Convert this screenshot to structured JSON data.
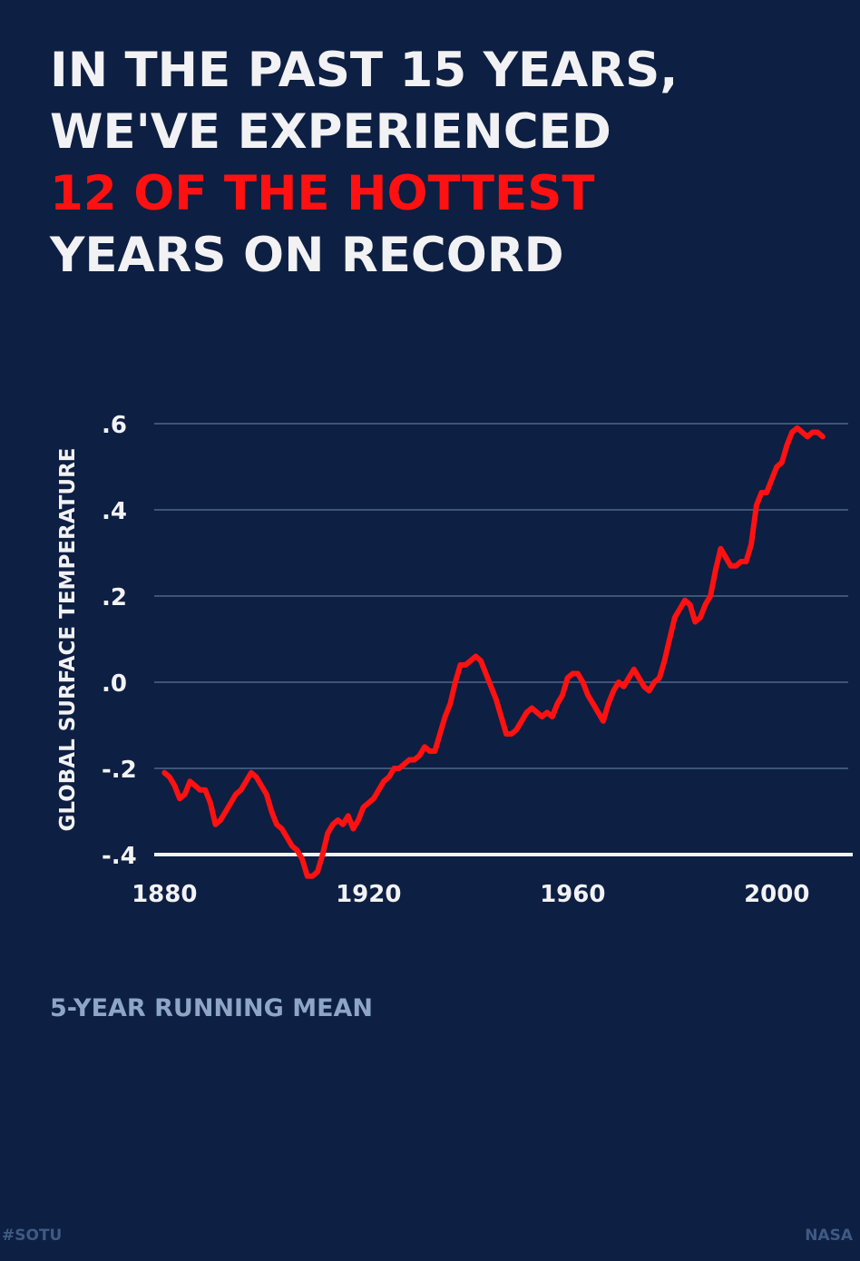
{
  "headline": {
    "line1": "IN THE PAST 15 YEARS,",
    "line2": "WE'VE EXPERIENCED",
    "line3": "12 OF THE HOTTEST",
    "line4": "YEARS ON RECORD"
  },
  "subtitle": "5-YEAR RUNNING MEAN",
  "footer": {
    "hashtag": "#SOTU",
    "source": "NASA"
  },
  "colors": {
    "background": "#0d1f42",
    "line": "#ff1111",
    "grid": "#3d5578",
    "text": "#f2f2f4",
    "subtitle": "#8ea6c6"
  },
  "chart_data": {
    "type": "line",
    "ylabel": "GLOBAL SURFACE TEMPERATURE",
    "xlabel": "",
    "xlim": [
      1878,
      2014
    ],
    "ylim": [
      -0.4,
      0.6
    ],
    "xticks": [
      1880,
      1920,
      1960,
      2000
    ],
    "xtick_labels": [
      "1880",
      "1920",
      "1960",
      "2000"
    ],
    "yticks": [
      -0.4,
      -0.2,
      0.0,
      0.2,
      0.4,
      0.6
    ],
    "ytick_labels": [
      "-.4",
      "-.2",
      ".0",
      ".2",
      ".4",
      ".6"
    ],
    "grid": true,
    "series": [
      {
        "x": [
          1880,
          1881,
          1882,
          1883,
          1884,
          1885,
          1886,
          1887,
          1888,
          1889,
          1890,
          1891,
          1892,
          1893,
          1894,
          1895,
          1896,
          1897,
          1898,
          1899,
          1900,
          1901,
          1902,
          1903,
          1904,
          1905,
          1906,
          1907,
          1908,
          1909,
          1910,
          1911,
          1912,
          1913,
          1914,
          1915,
          1916,
          1917,
          1918,
          1919,
          1920,
          1921,
          1922,
          1923,
          1924,
          1925,
          1926,
          1927,
          1928,
          1929,
          1930,
          1931,
          1932,
          1933,
          1934,
          1935,
          1936,
          1937,
          1938,
          1939,
          1940,
          1941,
          1942,
          1943,
          1944,
          1945,
          1946,
          1947,
          1948,
          1949,
          1950,
          1951,
          1952,
          1953,
          1954,
          1955,
          1956,
          1957,
          1958,
          1959,
          1960,
          1961,
          1962,
          1963,
          1964,
          1965,
          1966,
          1967,
          1968,
          1969,
          1970,
          1971,
          1972,
          1973,
          1974,
          1975,
          1976,
          1977,
          1978,
          1979,
          1980,
          1981,
          1982,
          1983,
          1984,
          1985,
          1986,
          1987,
          1988,
          1989,
          1990,
          1991,
          1992,
          1993,
          1994,
          1995,
          1996,
          1997,
          1998,
          1999,
          2000,
          2001,
          2002,
          2003,
          2004,
          2005,
          2006,
          2007,
          2008,
          2009
        ],
        "y": [
          -0.21,
          -0.22,
          -0.24,
          -0.27,
          -0.26,
          -0.23,
          -0.24,
          -0.25,
          -0.25,
          -0.28,
          -0.33,
          -0.32,
          -0.3,
          -0.28,
          -0.26,
          -0.25,
          -0.23,
          -0.21,
          -0.22,
          -0.24,
          -0.26,
          -0.3,
          -0.33,
          -0.34,
          -0.36,
          -0.38,
          -0.39,
          -0.41,
          -0.45,
          -0.45,
          -0.44,
          -0.4,
          -0.35,
          -0.33,
          -0.32,
          -0.33,
          -0.31,
          -0.34,
          -0.32,
          -0.29,
          -0.28,
          -0.27,
          -0.25,
          -0.23,
          -0.22,
          -0.2,
          -0.2,
          -0.19,
          -0.18,
          -0.18,
          -0.17,
          -0.15,
          -0.16,
          -0.16,
          -0.12,
          -0.08,
          -0.05,
          0.0,
          0.04,
          0.04,
          0.05,
          0.06,
          0.05,
          0.02,
          -0.01,
          -0.04,
          -0.08,
          -0.12,
          -0.12,
          -0.11,
          -0.09,
          -0.07,
          -0.06,
          -0.07,
          -0.08,
          -0.07,
          -0.08,
          -0.05,
          -0.03,
          0.01,
          0.02,
          0.02,
          0.0,
          -0.03,
          -0.05,
          -0.07,
          -0.09,
          -0.05,
          -0.02,
          0.0,
          -0.01,
          0.01,
          0.03,
          0.01,
          -0.01,
          -0.02,
          0.0,
          0.01,
          0.05,
          0.1,
          0.15,
          0.17,
          0.19,
          0.18,
          0.14,
          0.15,
          0.18,
          0.2,
          0.26,
          0.31,
          0.29,
          0.27,
          0.27,
          0.28,
          0.28,
          0.32,
          0.41,
          0.44,
          0.44,
          0.47,
          0.5,
          0.51,
          0.55,
          0.58,
          0.59,
          0.58,
          0.57,
          0.58,
          0.58,
          0.57
        ]
      }
    ]
  }
}
